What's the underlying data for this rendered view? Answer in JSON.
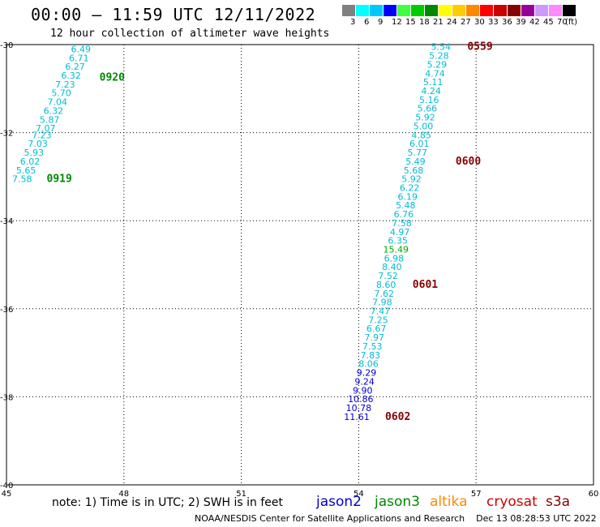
{
  "header": {
    "title": "00:00 – 11:59 UTC 12/11/2022",
    "subtitle": "12 hour collection of altimeter wave heights"
  },
  "color_scale": {
    "unit_label": "(ft)",
    "steps": [
      {
        "label": "3",
        "color": "#808080"
      },
      {
        "label": "6",
        "color": "#00ffff"
      },
      {
        "label": "9",
        "color": "#00c8ff"
      },
      {
        "label": "12",
        "color": "#0000ff"
      },
      {
        "label": "15",
        "color": "#40ff40"
      },
      {
        "label": "18",
        "color": "#00cc00"
      },
      {
        "label": "21",
        "color": "#008800"
      },
      {
        "label": "24",
        "color": "#ffff00"
      },
      {
        "label": "27",
        "color": "#ffcc00"
      },
      {
        "label": "30",
        "color": "#ff8800"
      },
      {
        "label": "33",
        "color": "#ff0000"
      },
      {
        "label": "36",
        "color": "#cc0000"
      },
      {
        "label": "39",
        "color": "#880000"
      },
      {
        "label": "42",
        "color": "#990099"
      },
      {
        "label": "45",
        "color": "#cc99ff"
      },
      {
        "label": "70",
        "color": "#ff88ff"
      },
      {
        "label": "",
        "color": "#000000"
      }
    ]
  },
  "map": {
    "lon_ticks": [
      "45",
      "48",
      "51",
      "54",
      "57",
      "60"
    ],
    "lat_ticks": [
      "-30",
      "-32",
      "-34",
      "-36",
      "-38",
      "-40"
    ],
    "lon_range": [
      45,
      60
    ],
    "lat_range": [
      -30,
      -40
    ]
  },
  "tracks": [
    {
      "satellite": "jason3",
      "points": [
        {
          "lon": 46.9,
          "lat": -30.1,
          "swh": "6.49",
          "color": "#00bcd4"
        },
        {
          "lon": 46.85,
          "lat": -30.3,
          "swh": "6.71",
          "color": "#00bcd4"
        },
        {
          "lon": 46.75,
          "lat": -30.5,
          "swh": "6.27",
          "color": "#00bcd4"
        },
        {
          "lon": 46.65,
          "lat": -30.7,
          "swh": "6.32",
          "color": "#00bcd4"
        },
        {
          "lon": 46.5,
          "lat": -30.9,
          "swh": "7.23",
          "color": "#00bcd4"
        },
        {
          "lon": 46.4,
          "lat": -31.1,
          "swh": "5.70",
          "color": "#00bcd4"
        },
        {
          "lon": 46.3,
          "lat": -31.3,
          "swh": "7.04",
          "color": "#00bcd4"
        },
        {
          "lon": 46.2,
          "lat": -31.5,
          "swh": "6.32",
          "color": "#00bcd4"
        },
        {
          "lon": 46.1,
          "lat": -31.7,
          "swh": "5.87",
          "color": "#00bcd4"
        },
        {
          "lon": 46.0,
          "lat": -31.9,
          "swh": "7.07",
          "color": "#00bcd4"
        },
        {
          "lon": 45.9,
          "lat": -32.05,
          "swh": "7.23",
          "color": "#00bcd4"
        },
        {
          "lon": 45.8,
          "lat": -32.25,
          "swh": "7.03",
          "color": "#00bcd4"
        },
        {
          "lon": 45.7,
          "lat": -32.45,
          "swh": "5.93",
          "color": "#00bcd4"
        },
        {
          "lon": 45.6,
          "lat": -32.65,
          "swh": "6.02",
          "color": "#00bcd4"
        },
        {
          "lon": 45.5,
          "lat": -32.85,
          "swh": "5.65",
          "color": "#00bcd4"
        },
        {
          "lon": 45.4,
          "lat": -33.05,
          "swh": "7.58",
          "color": "#00bcd4"
        }
      ],
      "time_labels": [
        {
          "lon": 47.7,
          "lat": -30.75,
          "text": "0920",
          "color": "#008800"
        },
        {
          "lon": 46.35,
          "lat": -33.05,
          "text": "0919",
          "color": "#008800"
        }
      ]
    },
    {
      "satellite": "s3a",
      "points": [
        {
          "lon": 56.1,
          "lat": -30.05,
          "swh": "5.54",
          "color": "#00bcd4"
        },
        {
          "lon": 56.05,
          "lat": -30.25,
          "swh": "5.28",
          "color": "#00bcd4"
        },
        {
          "lon": 56.0,
          "lat": -30.45,
          "swh": "5.29",
          "color": "#00bcd4"
        },
        {
          "lon": 55.95,
          "lat": -30.65,
          "swh": "4.74",
          "color": "#00bcd4"
        },
        {
          "lon": 55.9,
          "lat": -30.85,
          "swh": "5.11",
          "color": "#00bcd4"
        },
        {
          "lon": 55.85,
          "lat": -31.05,
          "swh": "4.24",
          "color": "#00bcd4"
        },
        {
          "lon": 55.8,
          "lat": -31.25,
          "swh": "5.16",
          "color": "#00bcd4"
        },
        {
          "lon": 55.75,
          "lat": -31.45,
          "swh": "5.66",
          "color": "#00bcd4"
        },
        {
          "lon": 55.7,
          "lat": -31.65,
          "swh": "5.92",
          "color": "#00bcd4"
        },
        {
          "lon": 55.65,
          "lat": -31.85,
          "swh": "5.00",
          "color": "#00bcd4"
        },
        {
          "lon": 55.6,
          "lat": -32.05,
          "swh": "4.85",
          "color": "#00bcd4"
        },
        {
          "lon": 55.55,
          "lat": -32.25,
          "swh": "6.01",
          "color": "#00bcd4"
        },
        {
          "lon": 55.5,
          "lat": -32.45,
          "swh": "5.77",
          "color": "#00bcd4"
        },
        {
          "lon": 55.45,
          "lat": -32.65,
          "swh": "5.49",
          "color": "#00bcd4"
        },
        {
          "lon": 55.4,
          "lat": -32.85,
          "swh": "5.68",
          "color": "#00bcd4"
        },
        {
          "lon": 55.35,
          "lat": -33.05,
          "swh": "5.92",
          "color": "#00bcd4"
        },
        {
          "lon": 55.3,
          "lat": -33.25,
          "swh": "6.22",
          "color": "#00bcd4"
        },
        {
          "lon": 55.25,
          "lat": -33.45,
          "swh": "6.19",
          "color": "#00bcd4"
        },
        {
          "lon": 55.2,
          "lat": -33.65,
          "swh": "5.48",
          "color": "#00bcd4"
        },
        {
          "lon": 55.15,
          "lat": -33.85,
          "swh": "6.76",
          "color": "#00bcd4"
        },
        {
          "lon": 55.1,
          "lat": -34.05,
          "swh": "7.58",
          "color": "#00bcd4"
        },
        {
          "lon": 55.05,
          "lat": -34.25,
          "swh": "4.97",
          "color": "#00bcd4"
        },
        {
          "lon": 55.0,
          "lat": -34.45,
          "swh": "6.35",
          "color": "#00bcd4"
        },
        {
          "lon": 54.95,
          "lat": -34.65,
          "swh": "15.49",
          "color": "#00aa00"
        },
        {
          "lon": 54.9,
          "lat": -34.85,
          "swh": "6.98",
          "color": "#00bcd4"
        },
        {
          "lon": 54.85,
          "lat": -35.05,
          "swh": "8.40",
          "color": "#00bcd4"
        },
        {
          "lon": 54.75,
          "lat": -35.25,
          "swh": "7.52",
          "color": "#00bcd4"
        },
        {
          "lon": 54.7,
          "lat": -35.45,
          "swh": "8.60",
          "color": "#00bcd4"
        },
        {
          "lon": 54.65,
          "lat": -35.65,
          "swh": "7.62",
          "color": "#00bcd4"
        },
        {
          "lon": 54.6,
          "lat": -35.85,
          "swh": "7.98",
          "color": "#00bcd4"
        },
        {
          "lon": 54.55,
          "lat": -36.05,
          "swh": "7.47",
          "color": "#00bcd4"
        },
        {
          "lon": 54.5,
          "lat": -36.25,
          "swh": "7.25",
          "color": "#00bcd4"
        },
        {
          "lon": 54.45,
          "lat": -36.45,
          "swh": "6.67",
          "color": "#00bcd4"
        },
        {
          "lon": 54.4,
          "lat": -36.65,
          "swh": "7.97",
          "color": "#00bcd4"
        },
        {
          "lon": 54.35,
          "lat": -36.85,
          "swh": "7.53",
          "color": "#00bcd4"
        },
        {
          "lon": 54.3,
          "lat": -37.05,
          "swh": "7.83",
          "color": "#00bcd4"
        },
        {
          "lon": 54.25,
          "lat": -37.25,
          "swh": "8.06",
          "color": "#00bcd4"
        },
        {
          "lon": 54.2,
          "lat": -37.45,
          "swh": "9.29",
          "color": "#0000cc"
        },
        {
          "lon": 54.15,
          "lat": -37.65,
          "swh": "9.24",
          "color": "#0000cc"
        },
        {
          "lon": 54.1,
          "lat": -37.85,
          "swh": "9.90",
          "color": "#0000cc"
        },
        {
          "lon": 54.05,
          "lat": -38.05,
          "swh": "10.86",
          "color": "#0000cc"
        },
        {
          "lon": 54.0,
          "lat": -38.25,
          "swh": "10.78",
          "color": "#0000cc"
        },
        {
          "lon": 53.95,
          "lat": -38.45,
          "swh": "11.61",
          "color": "#0000cc"
        }
      ],
      "time_labels": [
        {
          "lon": 57.1,
          "lat": -30.05,
          "text": "0559",
          "color": "#880000"
        },
        {
          "lon": 56.8,
          "lat": -32.65,
          "text": "0600",
          "color": "#880000"
        },
        {
          "lon": 55.7,
          "lat": -35.45,
          "text": "0601",
          "color": "#880000"
        },
        {
          "lon": 55.0,
          "lat": -38.45,
          "text": "0602",
          "color": "#880000"
        }
      ]
    }
  ],
  "footer": {
    "note": "note: 1) Time is in UTC; 2) SWH is in feet",
    "satellites": [
      {
        "name": "jason2",
        "color": "#0000cc"
      },
      {
        "name": "jason3",
        "color": "#008800"
      },
      {
        "name": "altika",
        "color": "#ff8800"
      },
      {
        "name": "cryosat",
        "color": "#cc0000"
      },
      {
        "name": "s3a",
        "color": "#880000"
      }
    ],
    "credit": "NOAA/NESDIS Center for Satellite Applications and Research    Dec 13 08:28:53 UTC 2022"
  }
}
